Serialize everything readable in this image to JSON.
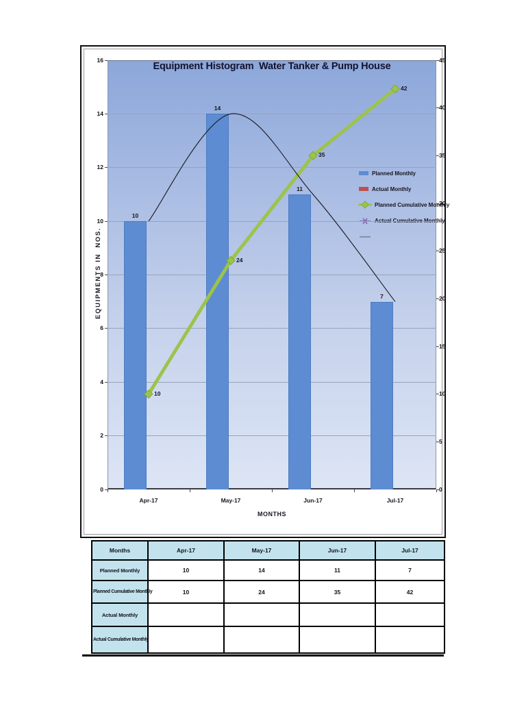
{
  "chart_data": {
    "type": "combo",
    "title": "Equipment Histogram  Water Tanker & Pump House",
    "xlabel": "MONTHS",
    "ylabel": "EQUIPMENTS IN  NOS.",
    "categories": [
      "Apr-17",
      "May-17",
      "Jun-17",
      "Jul-17"
    ],
    "axes": {
      "left": {
        "min": 0,
        "max": 16,
        "step": 2
      },
      "right": {
        "min": 0,
        "max": 45,
        "step": 5
      }
    },
    "grid": true,
    "legend_position": "middle-right",
    "series": [
      {
        "name": "Planned Monthly",
        "type": "bar",
        "axis": "left",
        "marker": "square",
        "color": "#5d8cd2",
        "values": [
          10,
          14,
          11,
          7
        ]
      },
      {
        "name": "Actual Monthly",
        "type": "bar",
        "axis": "left",
        "marker": "square",
        "color": "#c0504d",
        "values": [
          null,
          null,
          null,
          null
        ]
      },
      {
        "name": "Planned Cumulative Monthly",
        "type": "line",
        "axis": "right",
        "marker": "diamond",
        "color": "#9cc34c",
        "values": [
          10,
          24,
          35,
          42
        ]
      },
      {
        "name": "Actual Cumulative Monthly",
        "type": "line",
        "axis": "right",
        "marker": "star",
        "color": "#7e62a5",
        "values": [
          null,
          null,
          null,
          null
        ]
      },
      {
        "name": "",
        "type": "trendline",
        "axis": "left",
        "marker": "none",
        "color": "#23232e",
        "values": [
          10,
          14,
          11,
          7
        ]
      }
    ]
  },
  "table": {
    "header": [
      "Months",
      "Apr-17",
      "May-17",
      "Jun-17",
      "Jul-17"
    ],
    "rows": [
      {
        "label": "Planned Monthly",
        "values": [
          "10",
          "14",
          "11",
          "7"
        ]
      },
      {
        "label": "Planned Cumulative Monthly",
        "values": [
          "10",
          "24",
          "35",
          "42"
        ]
      },
      {
        "label": "Actual Monthly",
        "values": [
          "",
          "",
          "",
          ""
        ]
      },
      {
        "label": "Actual Cumulative Monthly",
        "values": [
          "",
          "",
          "",
          ""
        ]
      }
    ],
    "header_bg": "#c2e3ed"
  },
  "colors": {
    "planned_bar": "#5d8cd2",
    "actual_bar": "#c0504d",
    "planned_cumulative_line": "#9cc34c",
    "actual_cumulative_line": "#7e62a5",
    "plot_top": "#8ca7da",
    "plot_bottom": "#dde5f5",
    "table_header": "#c2e3ed"
  }
}
